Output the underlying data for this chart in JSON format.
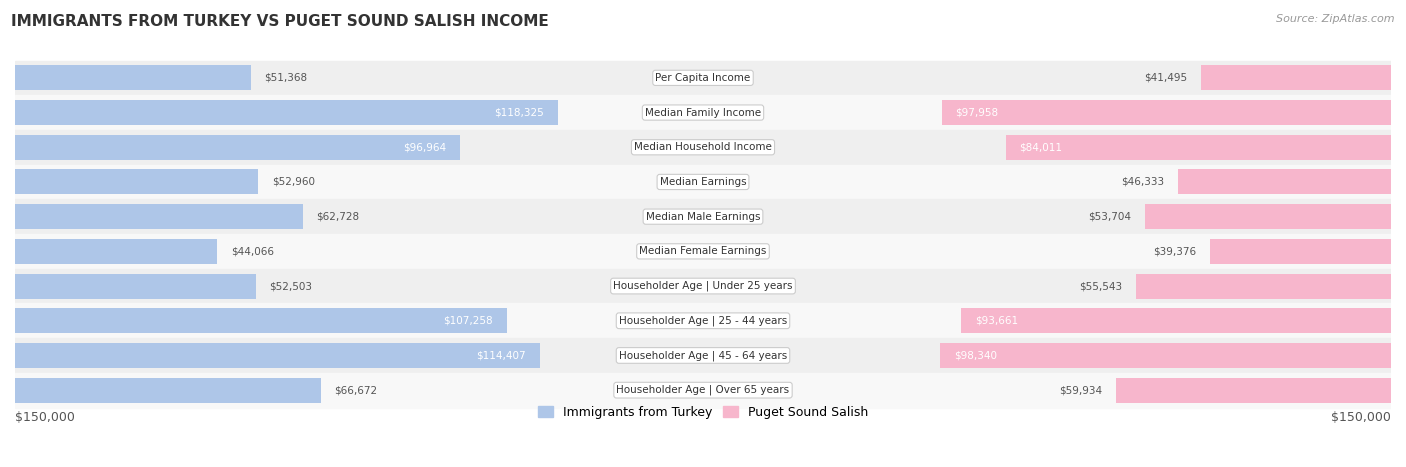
{
  "title": "IMMIGRANTS FROM TURKEY VS PUGET SOUND SALISH INCOME",
  "source": "Source: ZipAtlas.com",
  "categories": [
    "Per Capita Income",
    "Median Family Income",
    "Median Household Income",
    "Median Earnings",
    "Median Male Earnings",
    "Median Female Earnings",
    "Householder Age | Under 25 years",
    "Householder Age | 25 - 44 years",
    "Householder Age | 45 - 64 years",
    "Householder Age | Over 65 years"
  ],
  "turkey_values": [
    51368,
    118325,
    96964,
    52960,
    62728,
    44066,
    52503,
    107258,
    114407,
    66672
  ],
  "salish_values": [
    41495,
    97958,
    84011,
    46333,
    53704,
    39376,
    55543,
    93661,
    98340,
    59934
  ],
  "turkey_labels": [
    "$51,368",
    "$118,325",
    "$96,964",
    "$52,960",
    "$62,728",
    "$44,066",
    "$52,503",
    "$107,258",
    "$114,407",
    "$66,672"
  ],
  "salish_labels": [
    "$41,495",
    "$97,958",
    "$84,011",
    "$46,333",
    "$53,704",
    "$39,376",
    "$55,543",
    "$93,661",
    "$98,340",
    "$59,934"
  ],
  "max_value": 150000,
  "turkey_color_light": "#aec6e8",
  "turkey_color_solid": "#5b9bd5",
  "salish_color_light": "#f7b6cc",
  "salish_color_solid": "#e96fa0",
  "bg_color_even": "#efefef",
  "bg_color_odd": "#f8f8f8",
  "legend_turkey": "Immigrants from Turkey",
  "legend_salish": "Puget Sound Salish",
  "axis_label_left": "$150,000",
  "axis_label_right": "$150,000",
  "white_label_threshold": 0.55
}
